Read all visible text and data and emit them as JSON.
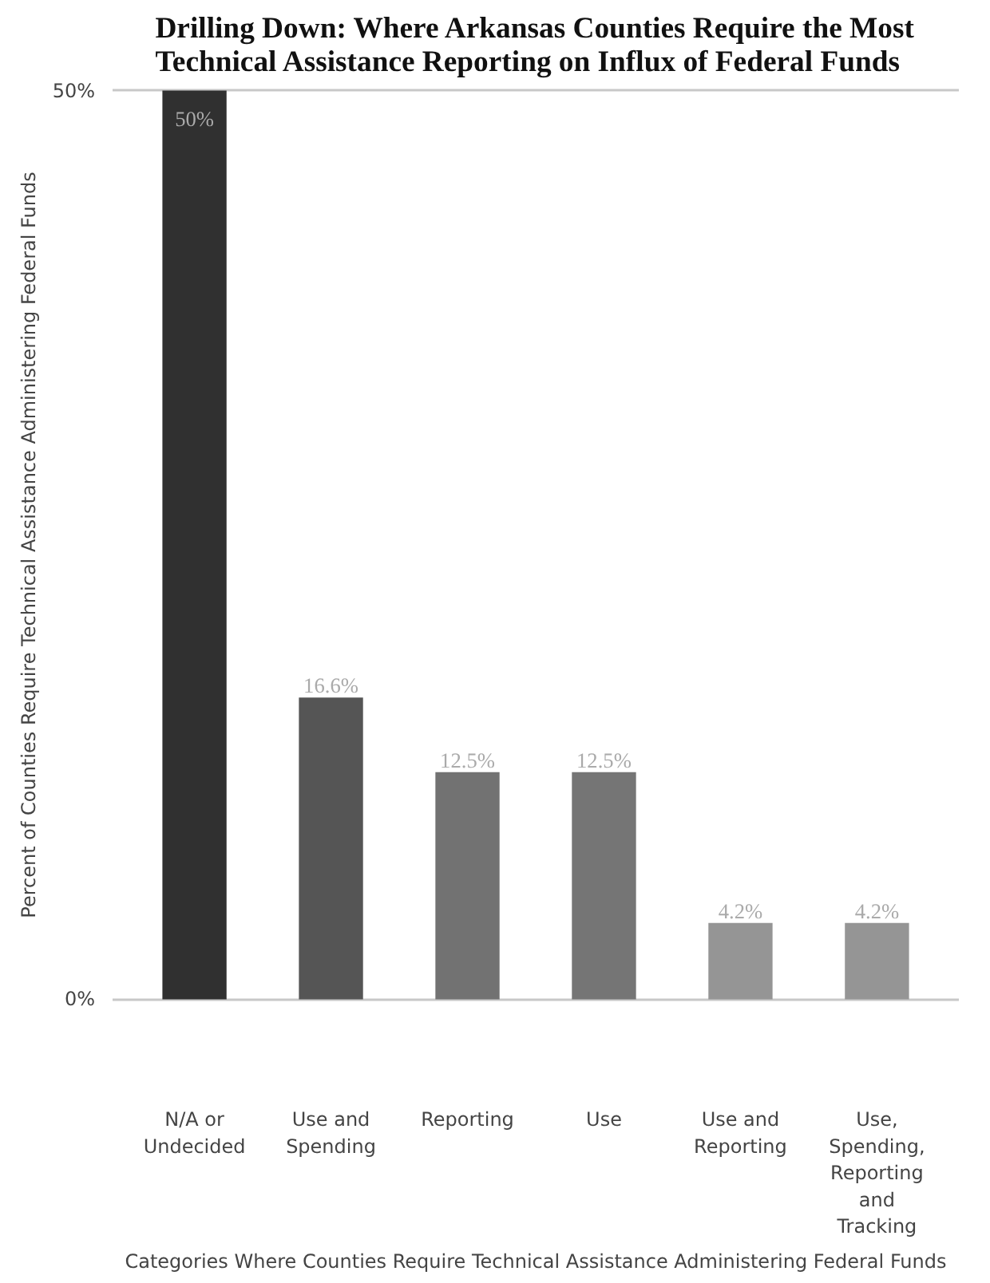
{
  "chart_data": {
    "type": "bar",
    "title": "Drilling Down: Where Arkansas Counties Require the Most Technical Assistance Reporting on Influx of Federal Funds",
    "xlabel": "Categories Where Counties Require Technical Assistance Administering Federal Funds",
    "ylabel": "Percent of Counties Require Technical Assistance Administering Federal Funds",
    "categories": [
      "N/A or Undecided",
      "Use and Spending",
      "Reporting",
      "Use",
      "Use and Reporting",
      "Use, Spending, Reporting and Tracking"
    ],
    "values": [
      50,
      16.6,
      12.5,
      12.5,
      4.2,
      4.2
    ],
    "colors": [
      "#303030",
      "#555555",
      "#727272",
      "#757575",
      "#959595",
      "#959595"
    ],
    "value_labels": [
      "50%",
      "16.6%",
      "12.5%",
      "12.5%",
      "4.2%",
      "4.2%"
    ],
    "ylim": [
      0,
      50
    ],
    "yticks": [
      {
        "value": 0,
        "label": "0%"
      },
      {
        "value": 50,
        "label": "50%"
      }
    ],
    "grid": "y"
  }
}
